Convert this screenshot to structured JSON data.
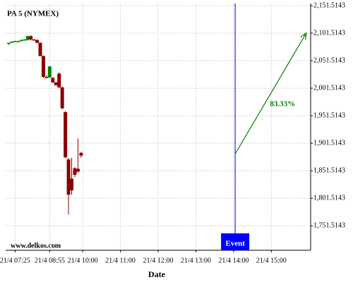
{
  "chart_data": {
    "type": "candlestick",
    "title": "PA 5 (NYMEX)",
    "watermark": "www.delkos.com",
    "x_label": "Date",
    "x": [
      1,
      2,
      3,
      4,
      5,
      6,
      7,
      8,
      9,
      10,
      11,
      12,
      13,
      14,
      15,
      16,
      17,
      18,
      19,
      20,
      21,
      22,
      23,
      24
    ],
    "open": [
      2082,
      2086,
      2087,
      2087,
      2088,
      2089,
      2089,
      2096,
      2090,
      2089,
      2084,
      2060,
      2022,
      2021,
      2020,
      2012,
      2028,
      2003,
      1958,
      1872,
      1837,
      1856,
      1855,
      1884
    ],
    "high": [
      2084,
      2087,
      2088,
      2088,
      2090,
      2091,
      2097,
      2098,
      2091,
      2090,
      2085,
      2061,
      2025,
      2042,
      2022,
      2013,
      2030,
      2005,
      1960,
      1875,
      1875,
      1858,
      1910,
      1886
    ],
    "low": [
      2080,
      2085,
      2086,
      2086,
      2087,
      2088,
      2088,
      2088,
      2088,
      2083,
      2059,
      2020,
      2019,
      2020,
      2011,
      2006,
      2002,
      1963,
      1874,
      1772,
      1808,
      1840,
      1848,
      1875
    ],
    "close": [
      2084,
      2086,
      2087,
      2087,
      2089,
      2090,
      2096,
      2090,
      2089,
      2084,
      2060,
      2022,
      2021,
      2041,
      2012,
      2007,
      2003,
      1965,
      1876,
      1808,
      1816,
      1844,
      1850,
      1879
    ],
    "up_color": "#008000",
    "down_color": "#8b0000",
    "xlim": [
      0,
      97
    ],
    "ylim": [
      1707,
      2155.3
    ],
    "xticks": [
      {
        "value": 3,
        "label": "21/4 07:25"
      },
      {
        "value": 14,
        "label": "21/4 08:55"
      },
      {
        "value": 24.5,
        "label": "21/4 10:00"
      },
      {
        "value": 36.5,
        "label": "21/4 11:00"
      },
      {
        "value": 48.5,
        "label": "21/4 12:00"
      },
      {
        "value": 60.5,
        "label": "21/4 13:00"
      },
      {
        "value": 72.5,
        "label": "21/4 14:00"
      },
      {
        "value": 84.5,
        "label": "21/4 15:00"
      }
    ],
    "yticks": [
      {
        "value": 2151.5143,
        "label": "2,151.5143"
      },
      {
        "value": 2101.5143,
        "label": "2,101.5143"
      },
      {
        "value": 2051.5143,
        "label": "2,051.5143"
      },
      {
        "value": 2001.5143,
        "label": "2,001.5143"
      },
      {
        "value": 1951.5143,
        "label": "1,951.5143"
      },
      {
        "value": 1901.5143,
        "label": "1,901.5143"
      },
      {
        "value": 1851.5143,
        "label": "1,851.5143"
      },
      {
        "value": 1801.5143,
        "label": "1,801.5143"
      },
      {
        "value": 1751.5143,
        "label": "1,751.5143"
      }
    ],
    "grid": true,
    "event": {
      "label": "Event",
      "x": 73,
      "color": "#0000ff"
    },
    "projection": {
      "label": "83.33%",
      "x": [
        73,
        95.5
      ],
      "y": [
        1882,
        2100.6
      ],
      "color": "#008000"
    }
  }
}
